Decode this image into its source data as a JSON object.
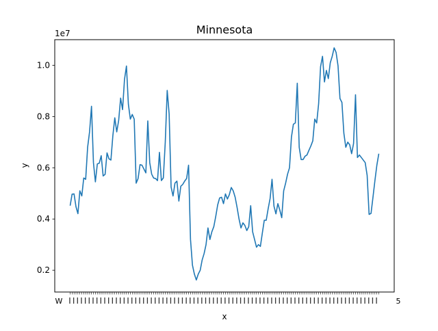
{
  "chart_data": {
    "type": "line",
    "title": "Minnesota",
    "xlabel": "x",
    "ylabel": "y",
    "y_multiplier_label": "1e7",
    "ylim": [
      0.115,
      1.1
    ],
    "yticks": [
      0.2,
      0.4,
      0.6,
      0.8,
      1.0
    ],
    "ytick_labels": [
      "0.2",
      "0.4",
      "0.6",
      "0.8",
      "1.0"
    ],
    "grid": false,
    "legend": "none",
    "line_color": "#1f77b4",
    "x_tick_labels_legible": [
      "W",
      "5"
    ],
    "series": [
      {
        "values": [
          0.452,
          0.497,
          0.498,
          0.448,
          0.421,
          0.51,
          0.49,
          0.56,
          0.555,
          0.68,
          0.74,
          0.84,
          0.62,
          0.545,
          0.615,
          0.618,
          0.647,
          0.568,
          0.574,
          0.658,
          0.635,
          0.63,
          0.725,
          0.795,
          0.74,
          0.785,
          0.872,
          0.827,
          0.945,
          0.997,
          0.848,
          0.79,
          0.808,
          0.79,
          0.54,
          0.558,
          0.612,
          0.61,
          0.595,
          0.58,
          0.783,
          0.62,
          0.575,
          0.56,
          0.558,
          0.55,
          0.66,
          0.55,
          0.56,
          0.7,
          0.902,
          0.81,
          0.525,
          0.49,
          0.54,
          0.548,
          0.47,
          0.528,
          0.535,
          0.548,
          0.558,
          0.61,
          0.32,
          0.22,
          0.185,
          0.162,
          0.185,
          0.2,
          0.24,
          0.265,
          0.3,
          0.365,
          0.32,
          0.35,
          0.37,
          0.41,
          0.455,
          0.482,
          0.485,
          0.46,
          0.498,
          0.478,
          0.495,
          0.523,
          0.51,
          0.485,
          0.445,
          0.4,
          0.365,
          0.385,
          0.375,
          0.355,
          0.37,
          0.452,
          0.35,
          0.32,
          0.29,
          0.3,
          0.293,
          0.345,
          0.395,
          0.395,
          0.44,
          0.48,
          0.555,
          0.45,
          0.42,
          0.46,
          0.435,
          0.405,
          0.51,
          0.54,
          0.575,
          0.6,
          0.72,
          0.77,
          0.775,
          0.93,
          0.68,
          0.632,
          0.632,
          0.645,
          0.65,
          0.668,
          0.685,
          0.705,
          0.79,
          0.775,
          0.85,
          0.995,
          1.035,
          0.935,
          0.98,
          0.948,
          1.01,
          1.035,
          1.068,
          1.05,
          0.998,
          0.87,
          0.855,
          0.735,
          0.68,
          0.7,
          0.69,
          0.655,
          0.695,
          0.885,
          0.64,
          0.65,
          0.64,
          0.63,
          0.62,
          0.57,
          0.418,
          0.422,
          0.485,
          0.55,
          0.61,
          0.655
        ]
      }
    ]
  }
}
